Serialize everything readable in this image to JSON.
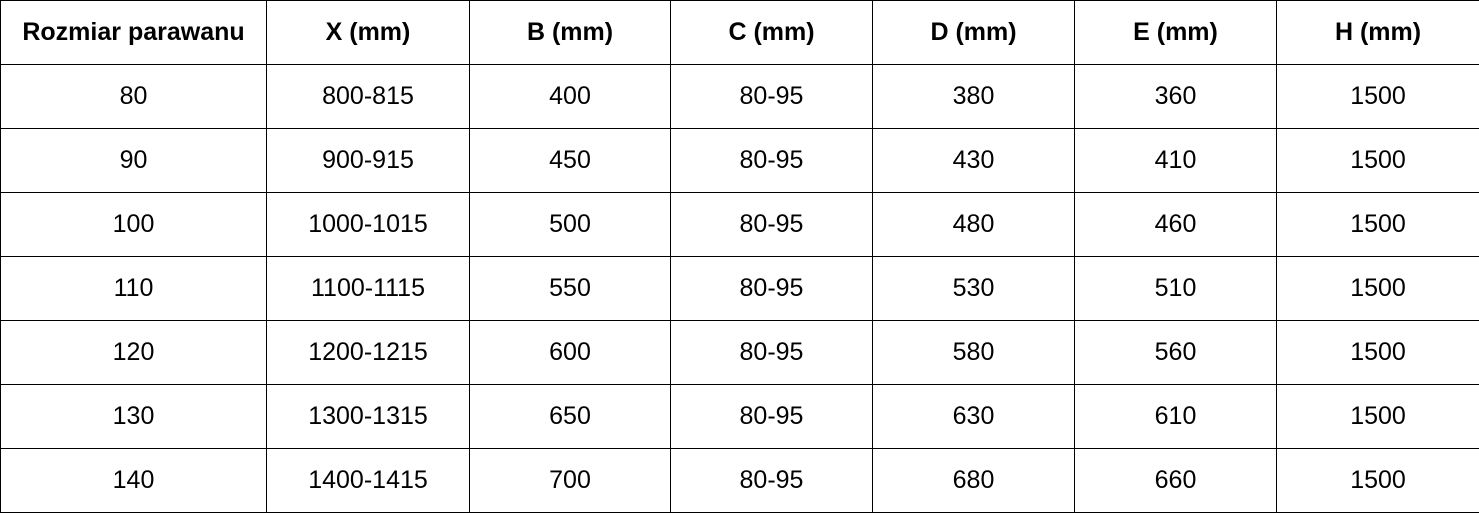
{
  "table": {
    "headers": [
      "Rozmiar parawanu",
      "X (mm)",
      "B (mm)",
      "C (mm)",
      "D (mm)",
      "E (mm)",
      "H (mm)"
    ],
    "rows": [
      [
        "80",
        "800-815",
        "400",
        "80-95",
        "380",
        "360",
        "1500"
      ],
      [
        "90",
        "900-915",
        "450",
        "80-95",
        "430",
        "410",
        "1500"
      ],
      [
        "100",
        "1000-1015",
        "500",
        "80-95",
        "480",
        "460",
        "1500"
      ],
      [
        "110",
        "1100-1115",
        "550",
        "80-95",
        "530",
        "510",
        "1500"
      ],
      [
        "120",
        "1200-1215",
        "600",
        "80-95",
        "580",
        "560",
        "1500"
      ],
      [
        "130",
        "1300-1315",
        "650",
        "80-95",
        "630",
        "610",
        "1500"
      ],
      [
        "140",
        "1400-1415",
        "700",
        "80-95",
        "680",
        "660",
        "1500"
      ]
    ]
  }
}
